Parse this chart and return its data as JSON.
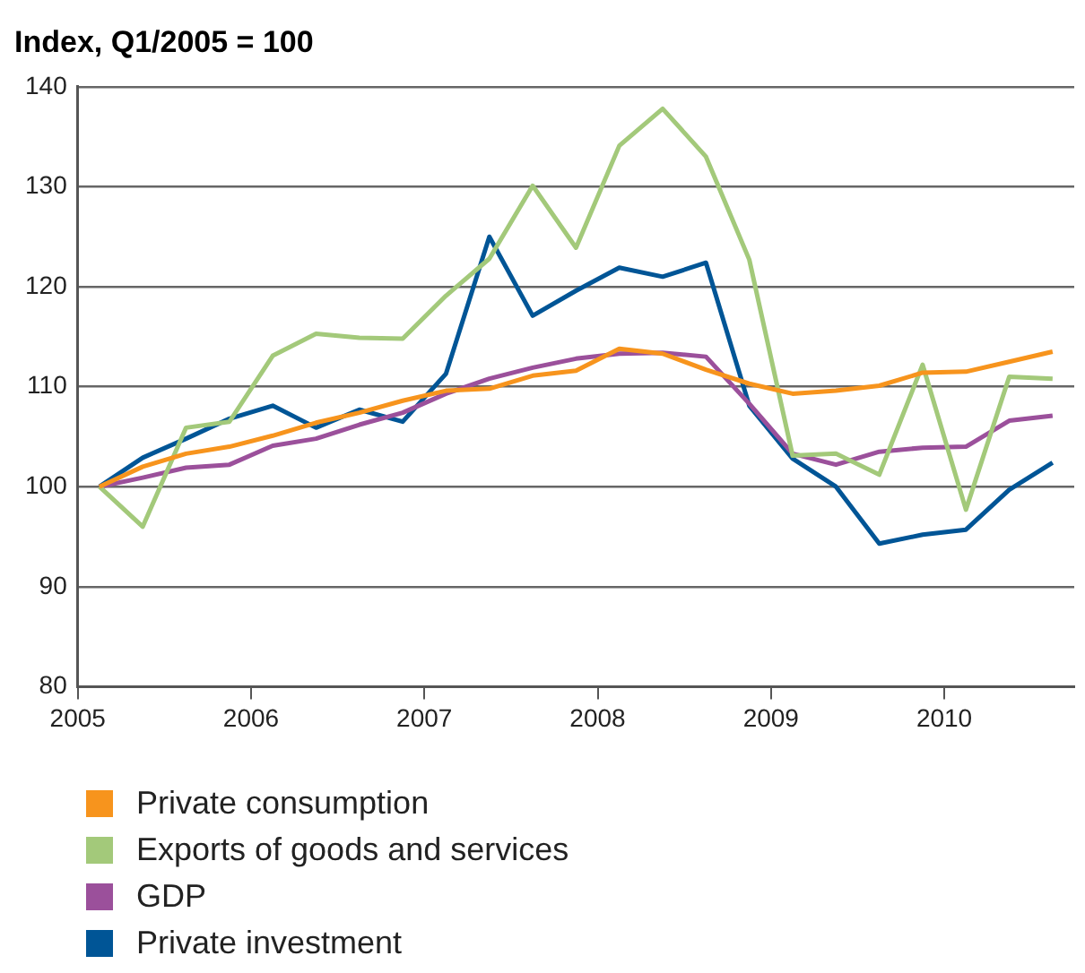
{
  "chart_data": {
    "type": "line",
    "title": "Index, Q1/2005 = 100",
    "x": [
      2005.125,
      2005.375,
      2005.625,
      2005.875,
      2006.125,
      2006.375,
      2006.625,
      2006.875,
      2007.125,
      2007.375,
      2007.625,
      2007.875,
      2008.125,
      2008.375,
      2008.625,
      2008.875,
      2009.125,
      2009.375,
      2009.625,
      2009.875,
      2010.125,
      2010.375,
      2010.625
    ],
    "series": [
      {
        "name": "Private consumption",
        "color": "#f7941d",
        "values": [
          100,
          102.0,
          103.3,
          104.0,
          105.1,
          106.4,
          107.4,
          108.6,
          109.6,
          109.8,
          111.1,
          111.6,
          113.8,
          113.3,
          111.7,
          110.3,
          109.3,
          109.6,
          110.1,
          111.4,
          111.5,
          112.5,
          113.5
        ]
      },
      {
        "name": "Exports of goods and services",
        "color": "#a3c97a",
        "values": [
          100,
          96.0,
          105.9,
          106.5,
          113.1,
          115.3,
          114.9,
          114.8,
          119.1,
          122.8,
          130.1,
          123.9,
          134.1,
          137.8,
          133.0,
          122.7,
          103.1,
          103.3,
          101.2,
          112.2,
          97.7,
          111.0,
          110.8
        ]
      },
      {
        "name": "GDP",
        "color": "#9b509b",
        "values": [
          100,
          100.9,
          101.9,
          102.2,
          104.1,
          104.8,
          106.2,
          107.4,
          109.3,
          110.8,
          111.9,
          112.8,
          113.3,
          113.4,
          113.0,
          108.3,
          103.3,
          102.2,
          103.5,
          103.9,
          104.0,
          106.6,
          107.1
        ]
      },
      {
        "name": "Private investment",
        "color": "#005596",
        "values": [
          100,
          102.9,
          104.8,
          106.8,
          108.1,
          105.9,
          107.7,
          106.5,
          111.3,
          125.0,
          117.1,
          119.6,
          121.9,
          121.0,
          122.4,
          108.1,
          102.8,
          100,
          94.3,
          95.2,
          95.7,
          99.7,
          102.4
        ]
      }
    ],
    "xlim": [
      2005,
      2010.75
    ],
    "xticks": [
      2005,
      2006,
      2007,
      2008,
      2009,
      2010
    ],
    "ylim": [
      80,
      140
    ],
    "yticks": [
      80,
      90,
      100,
      110,
      120,
      130,
      140
    ],
    "grid": "y",
    "legend": "bottom",
    "marker": "none",
    "line_style": "solid"
  }
}
